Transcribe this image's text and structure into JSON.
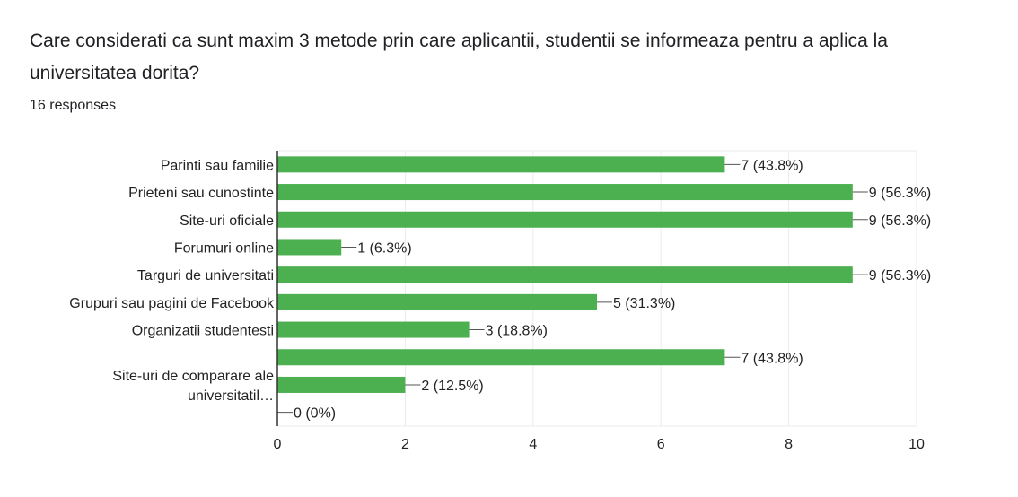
{
  "question": {
    "title": "Care considerati ca sunt maxim 3 metode prin care aplicantii, studentii se informeaza pentru a aplica la universitatea dorita?",
    "responses": "16 responses"
  },
  "colors": {
    "bar": "#4caf50",
    "grid": "#ebebeb",
    "axis": "#333333"
  },
  "chart_data": {
    "type": "bar",
    "orientation": "horizontal",
    "title": "",
    "xlabel": "",
    "ylabel": "",
    "xlim": [
      0,
      10
    ],
    "xticks": [
      0,
      2,
      4,
      6,
      8,
      10
    ],
    "grid": true,
    "legend": "none",
    "categories": [
      "Parinti sau familie",
      "Prieteni sau cunostinte",
      "Site-uri oficiale",
      "Forumuri online",
      "Targuri de universitati",
      "Grupuri sau pagini de Facebook",
      "Organizatii studentesti",
      "",
      "",
      ""
    ],
    "grouped_label": {
      "lines": [
        "Site-uri de comparare ale",
        "universitatil…"
      ],
      "spans": [
        7,
        9
      ]
    },
    "values": [
      7,
      9,
      9,
      1,
      9,
      5,
      3,
      7,
      2,
      0
    ],
    "data_labels": [
      "7 (43.8%)",
      "9 (56.3%)",
      "9 (56.3%)",
      "1 (6.3%)",
      "9 (56.3%)",
      "5 (31.3%)",
      "3 (18.8%)",
      "7 (43.8%)",
      "2 (12.5%)",
      "0 (0%)"
    ]
  }
}
